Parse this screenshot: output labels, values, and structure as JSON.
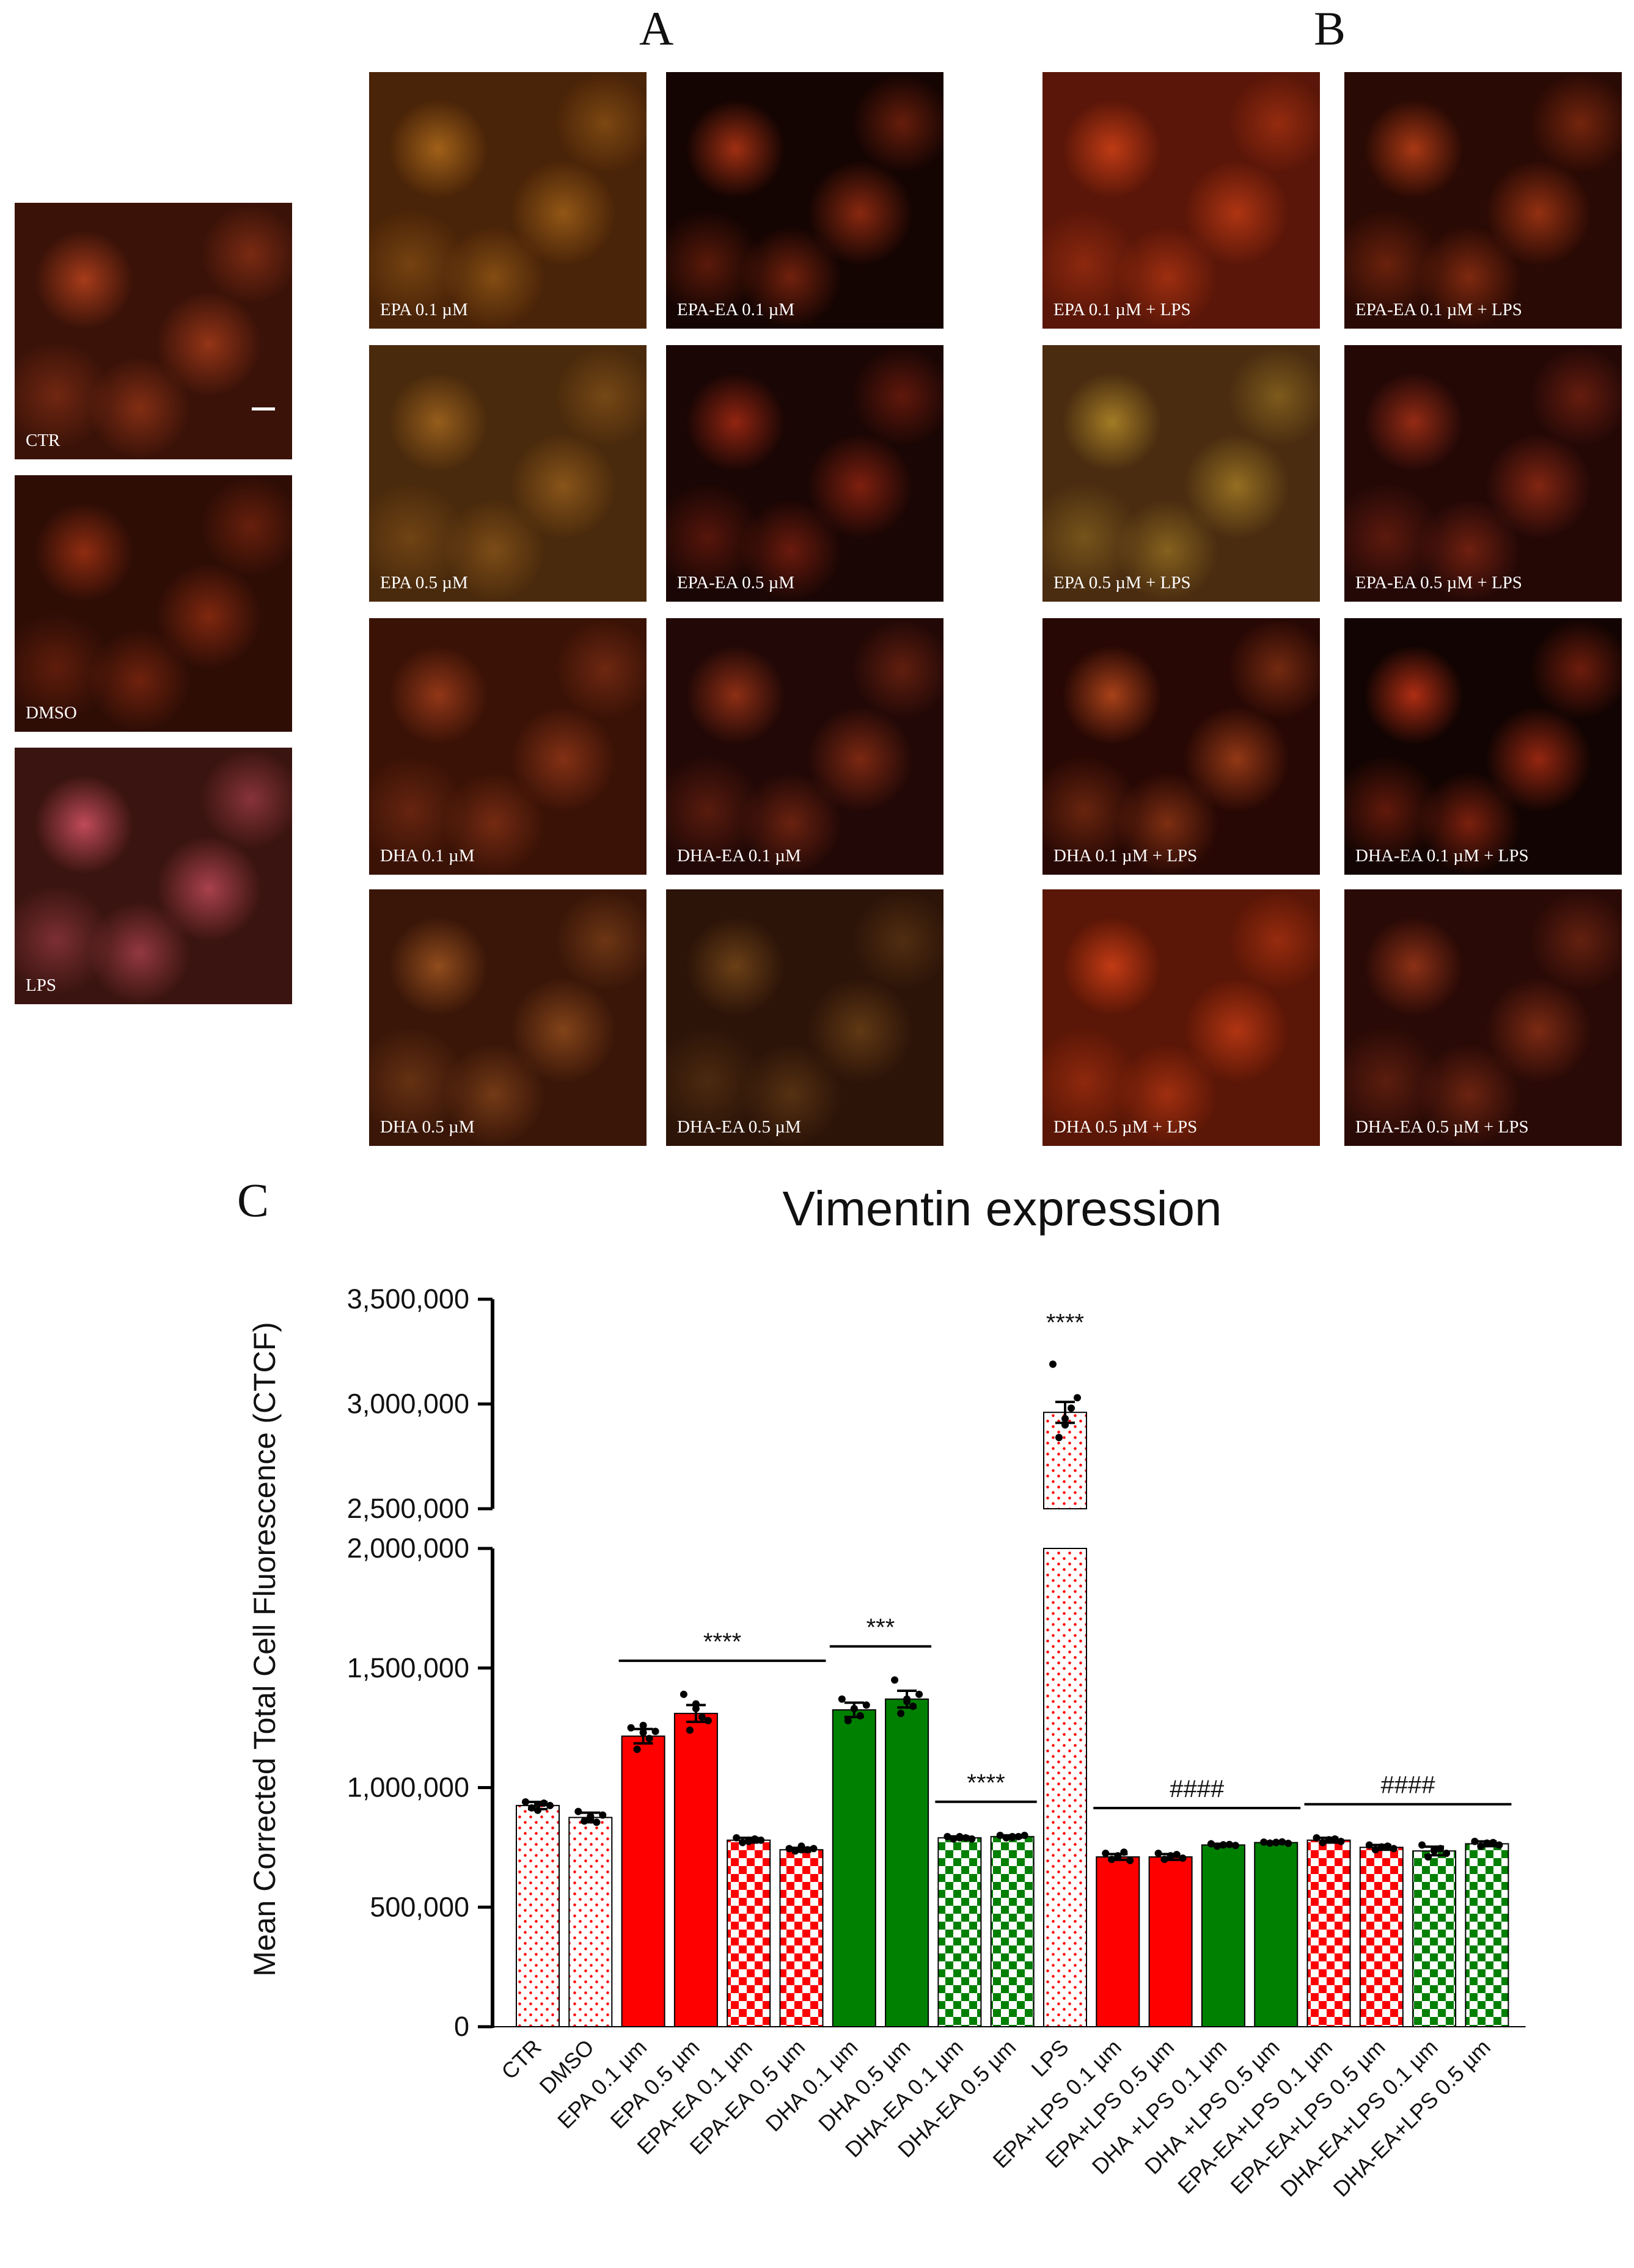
{
  "panels": {
    "a": "A",
    "b": "B",
    "c": "C"
  },
  "micrographs": [
    {
      "id": "ctr",
      "label": "CTR",
      "bg": "#3a1208",
      "glow": "#c2461e"
    },
    {
      "id": "dmso",
      "label": "DMSO",
      "bg": "#2e0d05",
      "glow": "#a83414"
    },
    {
      "id": "lps",
      "label": "LPS",
      "bg": "#3a1410",
      "glow": "#e0586a"
    },
    {
      "id": "epa01",
      "label": "EPA 0.1 µM",
      "bg": "#4a2408",
      "glow": "#b6701c"
    },
    {
      "id": "epaea01",
      "label": "EPA-EA 0.1 µM",
      "bg": "#140402",
      "glow": "#c33a16"
    },
    {
      "id": "epa05",
      "label": "EPA 0.5 µM",
      "bg": "#4a2a0c",
      "glow": "#a86a20"
    },
    {
      "id": "epaea05",
      "label": "EPA-EA 0.5 µM",
      "bg": "#1a0604",
      "glow": "#b02c14"
    },
    {
      "id": "dha01",
      "label": "DHA 0.1 µM",
      "bg": "#3a1206",
      "glow": "#a8401c"
    },
    {
      "id": "dhaea01",
      "label": "DHA-EA 0.1 µM",
      "bg": "#220806",
      "glow": "#a83818"
    },
    {
      "id": "dha05",
      "label": "DHA 0.5 µM",
      "bg": "#3a1608",
      "glow": "#a65a22"
    },
    {
      "id": "dhaea05",
      "label": "DHA-EA 0.5 µM",
      "bg": "#2c1408",
      "glow": "#7a4a1a"
    },
    {
      "id": "epa01lps",
      "label": "EPA 0.1 µM + LPS",
      "bg": "#5a1608",
      "glow": "#d84418"
    },
    {
      "id": "epaea01lps",
      "label": "EPA-EA 0.1 µM + LPS",
      "bg": "#2a0a04",
      "glow": "#c84418"
    },
    {
      "id": "epa05lps",
      "label": "EPA 0.5 µM + LPS",
      "bg": "#4a2c10",
      "glow": "#b8902a"
    },
    {
      "id": "epaea05lps",
      "label": "EPA-EA 0.5 µM + LPS",
      "bg": "#240806",
      "glow": "#b03418"
    },
    {
      "id": "dha01lps",
      "label": "DHA 0.1 µM + LPS",
      "bg": "#280804",
      "glow": "#c8501e"
    },
    {
      "id": "dhaea01lps",
      "label": "DHA-EA 0.1 µM + LPS",
      "bg": "#120402",
      "glow": "#d63818"
    },
    {
      "id": "dha05lps",
      "label": "DHA 0.5 µM + LPS",
      "bg": "#5a1606",
      "glow": "#dc4418"
    },
    {
      "id": "dhaea05lps",
      "label": "DHA-EA 0.5 µM + LPS",
      "bg": "#2a0a06",
      "glow": "#a43a1a"
    }
  ],
  "chart_data": {
    "type": "bar",
    "title": "Vimentin expression",
    "ylabel": "Mean Corrected Total Cell Fluorescence (CTCF)",
    "xlabel": "",
    "broken_axis": true,
    "ylim_lower": [
      0,
      2000000
    ],
    "ylim_upper": [
      2500000,
      3500000
    ],
    "yticks_lower": [
      "0",
      "500,000",
      "1,000,000",
      "1,500,000",
      "2,000,000"
    ],
    "yticks_upper": [
      "2,500,000",
      "3,000,000",
      "3,500,000"
    ],
    "categories": [
      "CTR",
      "DMSO",
      "EPA 0.1 µm",
      "EPA 0.5 µm",
      "EPA-EA 0.1 µm",
      "EPA-EA 0.5 µm",
      "DHA 0.1 µm",
      "DHA 0.5 µm",
      "DHA-EA 0.1 µm",
      "DHA-EA 0.5 µm",
      "LPS",
      "EPA+LPS 0.1 µm",
      "EPA+LPS 0.5 µm",
      "DHA +LPS 0.1 µm",
      "DHA +LPS 0.5 µm",
      "EPA-EA+LPS 0.1 µm",
      "EPA-EA+LPS 0.5 µm",
      "DHA-EA+LPS 0.1 µm",
      "DHA-EA+LPS 0.5 µm"
    ],
    "values": [
      925000,
      875000,
      1215000,
      1310000,
      780000,
      740000,
      1325000,
      1370000,
      790000,
      795000,
      2960000,
      710000,
      710000,
      760000,
      770000,
      780000,
      750000,
      735000,
      765000
    ],
    "errors": [
      15000,
      20000,
      30000,
      35000,
      10000,
      8000,
      30000,
      35000,
      6000,
      5000,
      50000,
      12000,
      12000,
      5000,
      4000,
      10000,
      10000,
      18000,
      10000
    ],
    "patterns": [
      "dots-red",
      "dots-red",
      "solid-red",
      "solid-red",
      "check-red",
      "check-red",
      "solid-green",
      "solid-green",
      "check-green",
      "check-green",
      "dots-red",
      "solid-red",
      "solid-red",
      "solid-green",
      "solid-green",
      "check-red",
      "check-red",
      "check-green",
      "check-green"
    ],
    "points": [
      [
        940000,
        915000,
        905000,
        935000,
        925000,
        930000
      ],
      [
        900000,
        860000,
        870000,
        855000,
        885000,
        880000
      ],
      [
        1250000,
        1160000,
        1230000,
        1205000,
        1235000,
        1260000
      ],
      [
        1390000,
        1240000,
        1330000,
        1295000,
        1280000,
        1350000
      ],
      [
        790000,
        770000,
        775000,
        785000,
        780000,
        780000
      ],
      [
        745000,
        735000,
        740000,
        740000,
        745000,
        755000
      ],
      [
        1370000,
        1280000,
        1330000,
        1300000,
        1345000,
        1330000
      ],
      [
        1450000,
        1310000,
        1370000,
        1340000,
        1390000,
        1360000
      ],
      [
        795000,
        785000,
        790000,
        790000,
        785000,
        795000
      ],
      [
        800000,
        790000,
        795000,
        795000,
        800000,
        792000
      ],
      [
        3190000,
        2840000,
        2930000,
        2980000,
        3030000,
        2900000
      ],
      [
        725000,
        700000,
        710000,
        730000,
        695000,
        715000
      ],
      [
        725000,
        700000,
        710000,
        720000,
        705000,
        715000
      ],
      [
        765000,
        755000,
        760000,
        762000,
        758000,
        761000
      ],
      [
        772000,
        768000,
        770000,
        773000,
        767000,
        771000
      ],
      [
        790000,
        770000,
        780000,
        785000,
        775000,
        782000
      ],
      [
        760000,
        740000,
        750000,
        755000,
        745000,
        752000
      ],
      [
        760000,
        710000,
        735000,
        745000,
        725000,
        740000
      ],
      [
        775000,
        755000,
        765000,
        770000,
        760000,
        768000
      ]
    ],
    "annotations": [
      {
        "text": "****",
        "from": 2,
        "to": 5
      },
      {
        "text": "***",
        "from": 6,
        "to": 7
      },
      {
        "text": "****",
        "from": 8,
        "to": 9
      },
      {
        "text": "****",
        "from": 10,
        "to": 10
      },
      {
        "text": "####",
        "from": 11,
        "to": 14
      },
      {
        "text": "####",
        "from": 15,
        "to": 18
      }
    ],
    "colors": {
      "red": "#ff0000",
      "green": "#008000"
    }
  }
}
